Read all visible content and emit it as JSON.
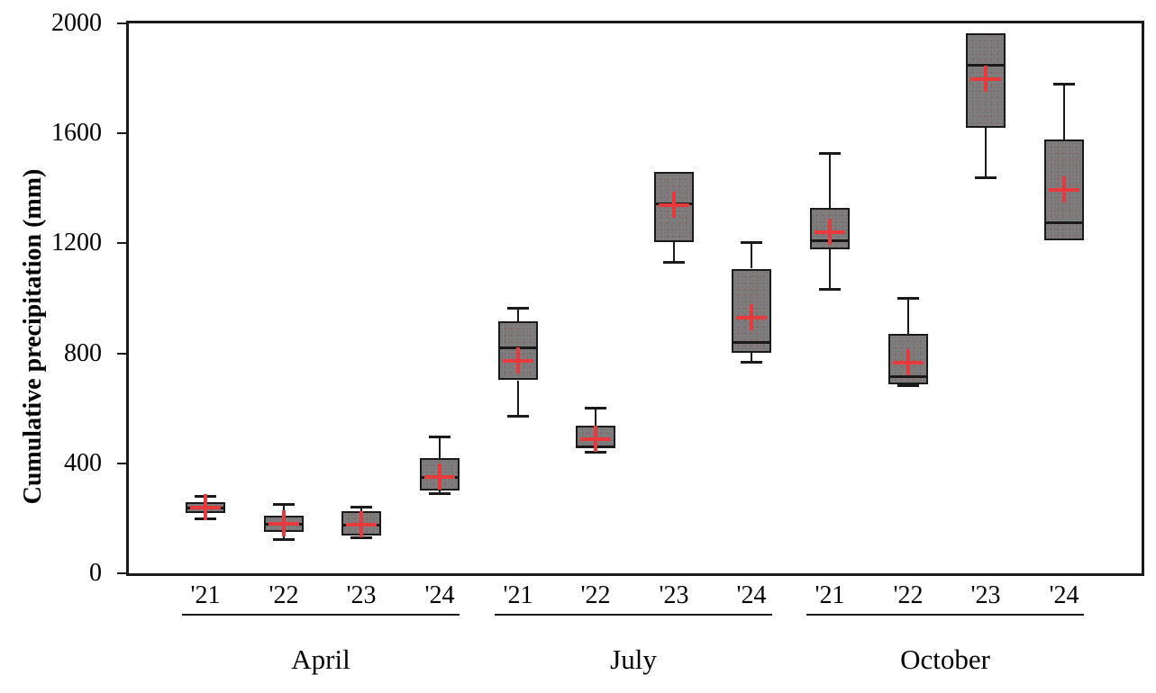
{
  "chart_data": {
    "type": "box",
    "title": "",
    "xlabel": "",
    "ylabel": "Cumulative precipitation (mm)",
    "ylim": [
      0,
      2000
    ],
    "yticks": [
      0,
      400,
      800,
      1200,
      1600,
      2000
    ],
    "grid": false,
    "legend": "none",
    "marker_meaning": "red plus = mean",
    "colors": {
      "box_fill": "#7f7d7e",
      "box_border": "#1a1a1a",
      "median": "#1a1a1a",
      "whisker": "#1a1a1a",
      "mean_marker": "#e8393d",
      "axis": "#1a1a1a",
      "background": "#ffffff"
    },
    "groups": [
      {
        "month": "April",
        "boxes": [
          {
            "year": "'21",
            "low": 195,
            "q1": 220,
            "median": 238,
            "q3": 258,
            "high": 282,
            "mean": 238
          },
          {
            "year": "'22",
            "low": 120,
            "q1": 150,
            "median": 180,
            "q3": 210,
            "high": 252,
            "mean": 180
          },
          {
            "year": "'23",
            "low": 128,
            "q1": 138,
            "median": 178,
            "q3": 226,
            "high": 243,
            "mean": 176
          },
          {
            "year": "'24",
            "low": 289,
            "q1": 302,
            "median": 351,
            "q3": 420,
            "high": 497,
            "mean": 351
          }
        ]
      },
      {
        "month": "July",
        "boxes": [
          {
            "year": "'21",
            "low": 570,
            "q1": 702,
            "median": 820,
            "q3": 915,
            "high": 964,
            "mean": 774
          },
          {
            "year": "'22",
            "low": 439,
            "q1": 456,
            "median": 460,
            "q3": 538,
            "high": 603,
            "mean": 489
          },
          {
            "year": "'23",
            "low": 1128,
            "q1": 1204,
            "median": 1345,
            "q3": 1460,
            "high": 1460,
            "mean": 1338
          },
          {
            "year": "'24",
            "low": 765,
            "q1": 802,
            "median": 840,
            "q3": 1108,
            "high": 1204,
            "mean": 928
          }
        ]
      },
      {
        "month": "October",
        "boxes": [
          {
            "year": "'21",
            "low": 1030,
            "q1": 1177,
            "median": 1212,
            "q3": 1328,
            "high": 1528,
            "mean": 1240
          },
          {
            "year": "'22",
            "low": 680,
            "q1": 689,
            "median": 718,
            "q3": 872,
            "high": 1003,
            "mean": 767
          },
          {
            "year": "'23",
            "low": 1436,
            "q1": 1620,
            "median": 1849,
            "q3": 1964,
            "high": 1964,
            "mean": 1797
          },
          {
            "year": "'24",
            "low": 1210,
            "q1": 1210,
            "median": 1276,
            "q3": 1577,
            "high": 1781,
            "mean": 1394
          }
        ]
      }
    ]
  }
}
